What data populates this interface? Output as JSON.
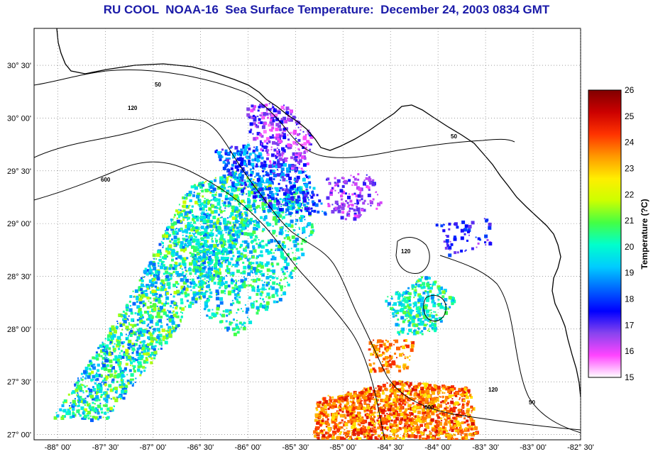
{
  "title": "RU COOL  NOAA-16  Sea Surface Temperature:  December 24, 2003 0834 GMT",
  "map": {
    "lat_labels": [
      "30° 30'",
      "30° 00'",
      "29° 30'",
      "29° 00'",
      "28° 30'",
      "28° 00'",
      "27° 30'",
      "27° 00'"
    ],
    "lon_labels": [
      "-88° 00'",
      "-87° 30'",
      "-87° 00'",
      "-86° 30'",
      "-86° 00'",
      "-85° 30'",
      "-85° 00'",
      "-84° 30'",
      "-84° 00'",
      "-83° 30'",
      "-83° 00'",
      "-82° 30'"
    ],
    "lat_range": [
      26.95,
      30.85
    ],
    "lon_range": [
      -88.25,
      -82.5
    ],
    "contour_labels": [
      "50",
      "120",
      "600"
    ],
    "land_color": "#ffffff",
    "grid": "dotted"
  },
  "colorbar": {
    "title": "Temperature (?C)",
    "min": 15,
    "max": 26,
    "tick_labels": [
      "15",
      "16",
      "17",
      "18",
      "19",
      "20",
      "21",
      "22",
      "23",
      "24",
      "25",
      "26"
    ],
    "colors": [
      "#ffffff",
      "#ff44ff",
      "#8844ee",
      "#0000ff",
      "#0066ff",
      "#00ccff",
      "#00ffcc",
      "#44ff44",
      "#ccff00",
      "#ffee00",
      "#ff9900",
      "#ff3300",
      "#cc0000",
      "#800000"
    ]
  }
}
